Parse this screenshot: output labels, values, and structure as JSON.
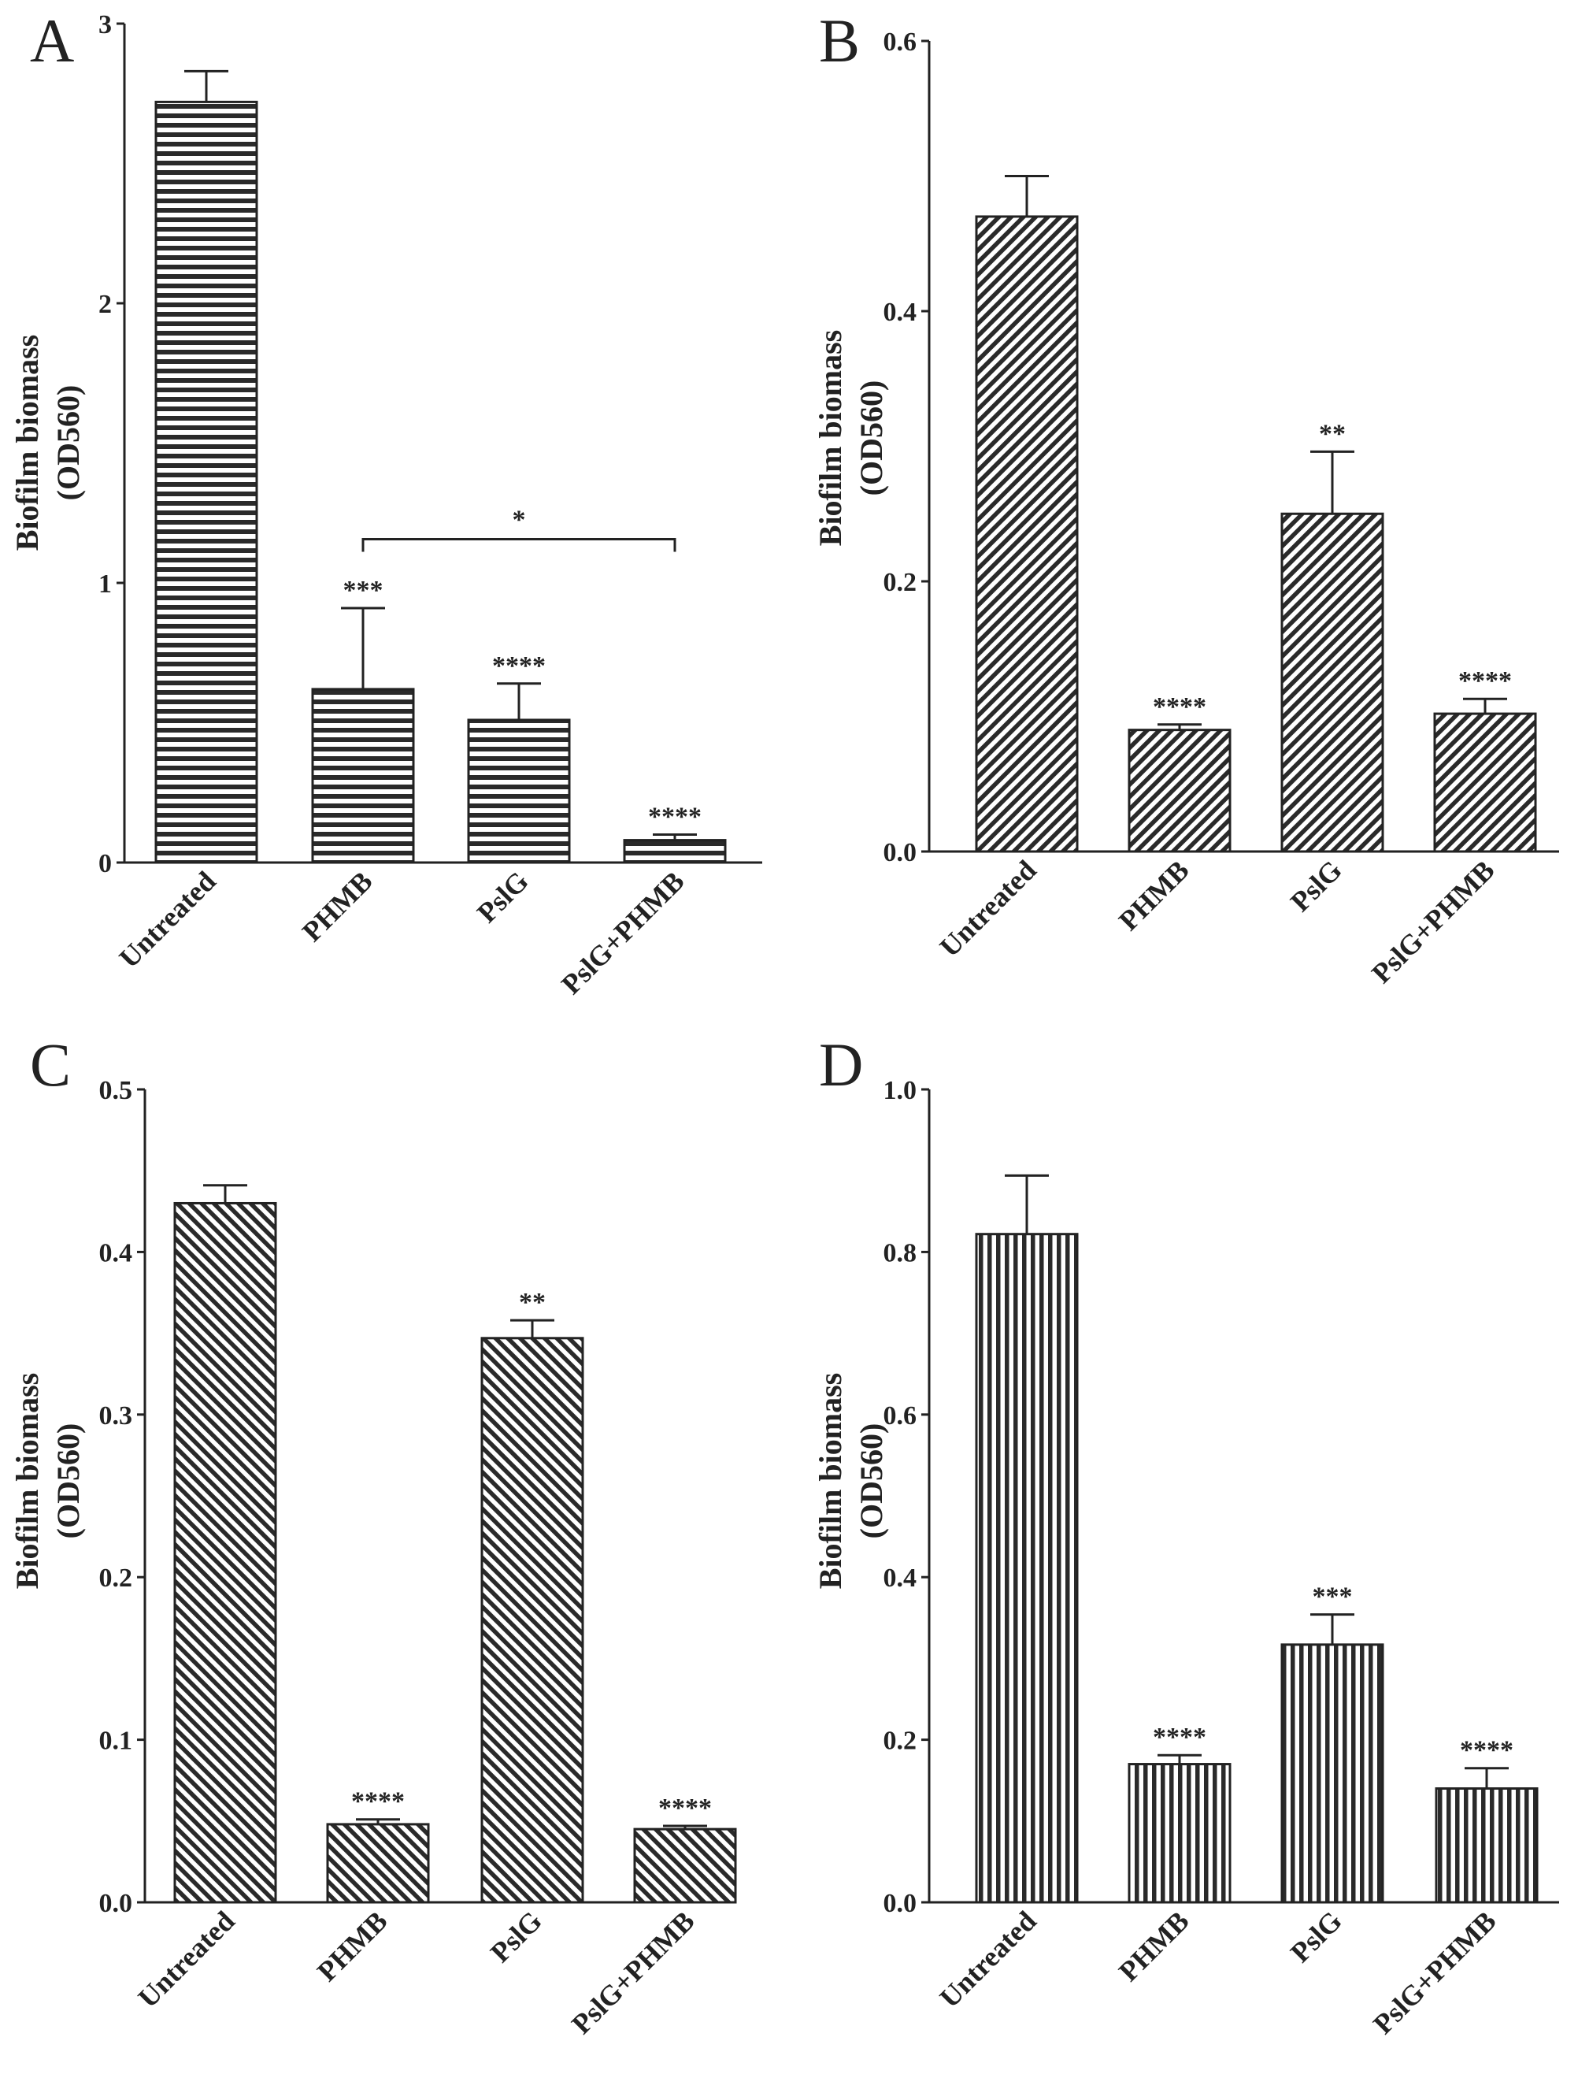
{
  "chart_data": [
    {
      "panel": "A",
      "type": "bar",
      "pattern": "horizontal",
      "ylabel_line1": "Biofilm biomass",
      "ylabel_line2": "(OD560)",
      "ylim": [
        0,
        3
      ],
      "yticks": [
        "0",
        "1",
        "2",
        "3"
      ],
      "categories": [
        "Untreated",
        "PHMB",
        "PslG",
        "PslG+PHMB"
      ],
      "values": [
        2.72,
        0.62,
        0.51,
        0.08
      ],
      "errors": [
        0.11,
        0.29,
        0.13,
        0.02
      ],
      "significance": [
        "",
        "***",
        "****",
        "****"
      ],
      "bracket": {
        "from": 1,
        "to": 3,
        "y": 1.1,
        "label": "*"
      }
    },
    {
      "panel": "B",
      "type": "bar",
      "pattern": "diagonal-right",
      "ylabel_line1": "Biofilm biomass",
      "ylabel_line2": "(OD560)",
      "ylim": [
        0,
        0.6
      ],
      "yticks": [
        "0.0",
        "0.2",
        "0.4",
        "0.6"
      ],
      "categories": [
        "Untreated",
        "PHMB",
        "PslG",
        "PslG+PHMB"
      ],
      "values": [
        0.47,
        0.09,
        0.25,
        0.102
      ],
      "errors": [
        0.03,
        0.004,
        0.046,
        0.011
      ],
      "significance": [
        "",
        "****",
        "**",
        "****"
      ]
    },
    {
      "panel": "C",
      "type": "bar",
      "pattern": "diagonal-left",
      "ylabel_line1": "Biofilm biomass",
      "ylabel_line2": "(OD560)",
      "ylim": [
        0,
        0.5
      ],
      "yticks": [
        "0.0",
        "0.1",
        "0.2",
        "0.3",
        "0.4",
        "0.5"
      ],
      "categories": [
        "Untreated",
        "PHMB",
        "PslG",
        "PslG+PHMB"
      ],
      "values": [
        0.43,
        0.048,
        0.347,
        0.045
      ],
      "errors": [
        0.011,
        0.003,
        0.011,
        0.002
      ],
      "significance": [
        "",
        "****",
        "**",
        "****"
      ]
    },
    {
      "panel": "D",
      "type": "bar",
      "pattern": "vertical",
      "ylabel_line1": "Biofilm biomass",
      "ylabel_line2": "(OD560)",
      "ylim": [
        0,
        1.0
      ],
      "yticks": [
        "0.0",
        "0.2",
        "0.4",
        "0.6",
        "0.8",
        "1.0"
      ],
      "categories": [
        "Untreated",
        "PHMB",
        "PslG",
        "PslG+PHMB"
      ],
      "values": [
        0.822,
        0.17,
        0.317,
        0.14
      ],
      "errors": [
        0.072,
        0.011,
        0.037,
        0.025
      ],
      "significance": [
        "",
        "****",
        "***",
        "****"
      ]
    }
  ]
}
